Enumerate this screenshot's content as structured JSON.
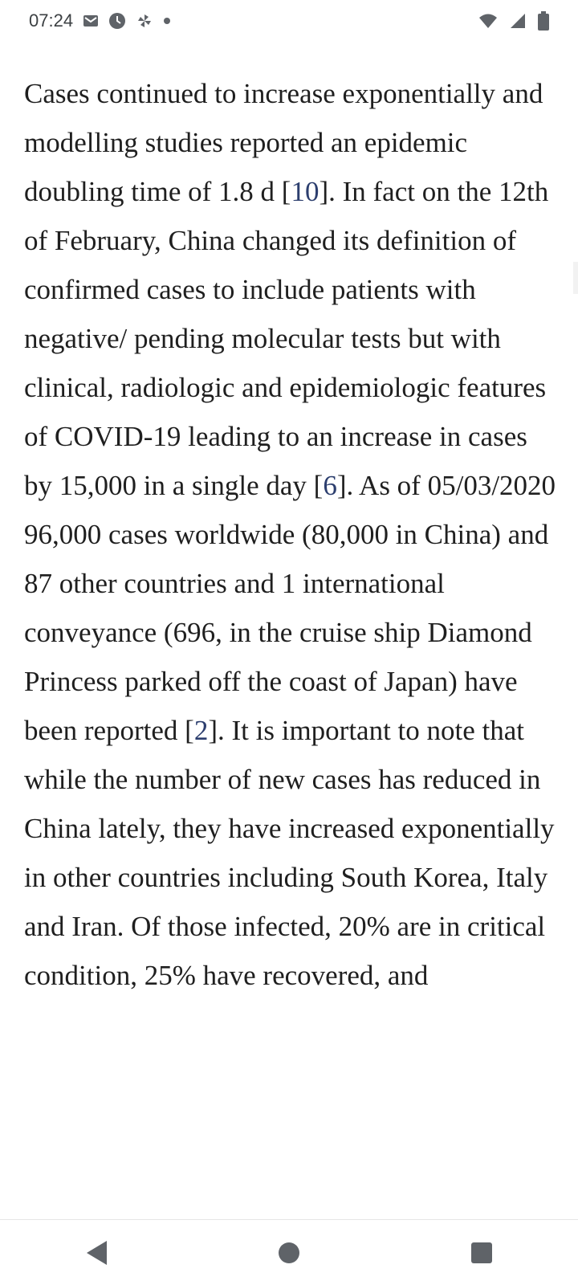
{
  "status_bar": {
    "time": "07:24",
    "left_icons": [
      "mail-icon",
      "clock-badge-icon",
      "pinwheel-icon",
      "dot-icon"
    ],
    "right_icons": [
      "wifi-icon",
      "signal-icon",
      "battery-icon"
    ]
  },
  "article": {
    "seg1": "Cases continued to increase exponentially and modelling studies reported an epidemic doubling time of 1.8 d [",
    "ref1": "10",
    "seg2": "]. In fact on the 12th of February, China changed its definition of confirmed cases to include patients with negative/ pending molecular tests but with clinical, radiologic and epidemiologic features of COVID-19 leading to an increase in cases by 15,000 in a single day [",
    "ref2": "6",
    "seg3": "]. As of 05/03/2020 96,000 cases worldwide (80,000 in China) and 87 other countries and 1 international conveyance (696, in the cruise ship Diamond Princess parked off the coast of Japan) have been reported [",
    "ref3": "2",
    "seg4": "]. It is important to note that while the number of new cases has reduced in China lately, they have increased exponentially in other countries including South Korea, Italy and Iran. Of those infected, 20% are in critical condition, 25% have recovered, and"
  },
  "colors": {
    "reference_link": "#2c3e6e",
    "body_text": "#1f1f1f",
    "nav_icons": "#5f6368"
  },
  "nav_bar": {
    "buttons": [
      "back-icon",
      "home-icon",
      "recents-icon"
    ]
  }
}
